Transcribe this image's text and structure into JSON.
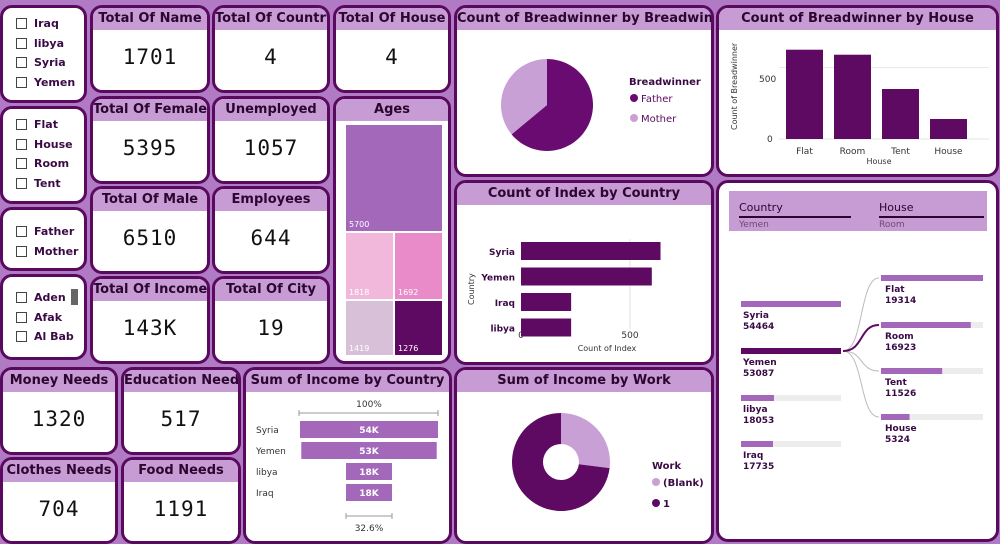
{
  "colors": {
    "dark": "#5e0a62",
    "mid": "#a468bb",
    "light": "#c9a0d6",
    "pink": "#f1b8dc",
    "pink2": "#e88bc8",
    "grey": "#d9c0d9",
    "bg": "#b07ac4",
    "head": "#c79bd3"
  },
  "slicers": {
    "country": [
      "Iraq",
      "libya",
      "Syria",
      "Yemen"
    ],
    "house": [
      "Flat",
      "House",
      "Room",
      "Tent"
    ],
    "breadwinner": [
      "Father",
      "Mother"
    ],
    "city": [
      "Aden",
      "Afak",
      "Al Bab"
    ]
  },
  "kpis": {
    "total_name": {
      "label": "Total Of Name",
      "value": "1701"
    },
    "total_country": {
      "label": "Total Of Country",
      "value": "4"
    },
    "total_house": {
      "label": "Total Of House",
      "value": "4"
    },
    "total_female": {
      "label": "Total Of Female",
      "value": "5395"
    },
    "unemployed": {
      "label": "Unemployed",
      "value": "1057"
    },
    "total_male": {
      "label": "Total Of Male",
      "value": "6510"
    },
    "employees": {
      "label": "Employees",
      "value": "644"
    },
    "total_income": {
      "label": "Total Of Income",
      "value": "143K"
    },
    "total_city": {
      "label": "Total Of City",
      "value": "19"
    },
    "money_needs": {
      "label": "Money Needs",
      "value": "1320"
    },
    "education_needs": {
      "label": "Education Needs",
      "value": "517"
    },
    "clothes_needs": {
      "label": "Clothes Needs",
      "value": "704"
    },
    "food_needs": {
      "label": "Food Needs",
      "value": "1191"
    }
  },
  "ages": {
    "title": "Ages",
    "cells": [
      {
        "value": "5700",
        "color": "#a468bb"
      },
      {
        "value": "1818",
        "color": "#f1b8dc"
      },
      {
        "value": "1692",
        "color": "#e88bc8"
      },
      {
        "value": "1419",
        "color": "#d9c0d9"
      },
      {
        "value": "1276",
        "color": "#5e0a62"
      }
    ]
  },
  "breadwinner_pie": {
    "title": "Count of Breadwinner by Breadwinner",
    "legend_title": "Breadwinner",
    "legend": [
      {
        "name": "Father",
        "color": "#6a0b72"
      },
      {
        "name": "Mother",
        "color": "#c9a0d6"
      }
    ]
  },
  "house_bar": {
    "title": "Count of Breadwinner by House",
    "ylabel": "Count of Breadwinner",
    "xlabel": "House",
    "yticks": [
      "500",
      "0"
    ]
  },
  "index_bar": {
    "title": "Count of Index by Country",
    "ylabel": "Country",
    "xlabel": "Count of Index",
    "xticks": [
      "0",
      "500"
    ]
  },
  "income_funnel": {
    "title": "Sum of Income by Country",
    "top_label": "100%",
    "bottom_label": "32.6%"
  },
  "work_donut": {
    "title": "Sum of Income by Work",
    "legend_title": "Work",
    "legend": [
      {
        "name": "(Blank)",
        "color": "#c9a0d6"
      },
      {
        "name": "1",
        "color": "#5e0a62"
      }
    ]
  },
  "decomp": {
    "col1_header": "Country",
    "col1_value": "Yemen",
    "col2_header": "House",
    "col2_value": "Room",
    "countries": [
      {
        "name": "Syria",
        "value": "54464"
      },
      {
        "name": "Yemen",
        "value": "53087"
      },
      {
        "name": "libya",
        "value": "18053"
      },
      {
        "name": "Iraq",
        "value": "17735"
      }
    ],
    "houses": [
      {
        "name": "Flat",
        "value": "19314"
      },
      {
        "name": "Room",
        "value": "16923"
      },
      {
        "name": "Tent",
        "value": "11526"
      },
      {
        "name": "House",
        "value": "5324"
      }
    ]
  },
  "chart_data": [
    {
      "type": "pie",
      "title": "Count of Breadwinner by Breadwinner",
      "categories": [
        "Father",
        "Mother"
      ],
      "values": [
        64,
        36
      ],
      "legend": "right"
    },
    {
      "type": "bar",
      "title": "Count of Breadwinner by House",
      "categories": [
        "Flat",
        "Room",
        "Tent",
        "House"
      ],
      "values": [
        625,
        590,
        350,
        140
      ],
      "xlabel": "House",
      "ylabel": "Count of Breadwinner",
      "ylim": [
        0,
        700
      ]
    },
    {
      "type": "bar",
      "title": "Count of Index by Country",
      "orientation": "horizontal",
      "categories": [
        "Syria",
        "Yemen",
        "Iraq",
        "libya"
      ],
      "values": [
        640,
        600,
        230,
        230
      ],
      "xlabel": "Count of Index",
      "ylabel": "Country",
      "xlim": [
        0,
        700
      ]
    },
    {
      "type": "bar",
      "title": "Sum of Income by Country",
      "orientation": "funnel",
      "categories": [
        "Syria",
        "Yemen",
        "libya",
        "Iraq"
      ],
      "values": [
        54,
        53,
        18,
        18
      ],
      "value_labels": [
        "54K",
        "53K",
        "18K",
        "18K"
      ]
    },
    {
      "type": "pie",
      "title": "Sum of Income by Work",
      "donut": true,
      "categories": [
        "(Blank)",
        "1"
      ],
      "values": [
        27,
        73
      ],
      "legend": "right"
    }
  ]
}
